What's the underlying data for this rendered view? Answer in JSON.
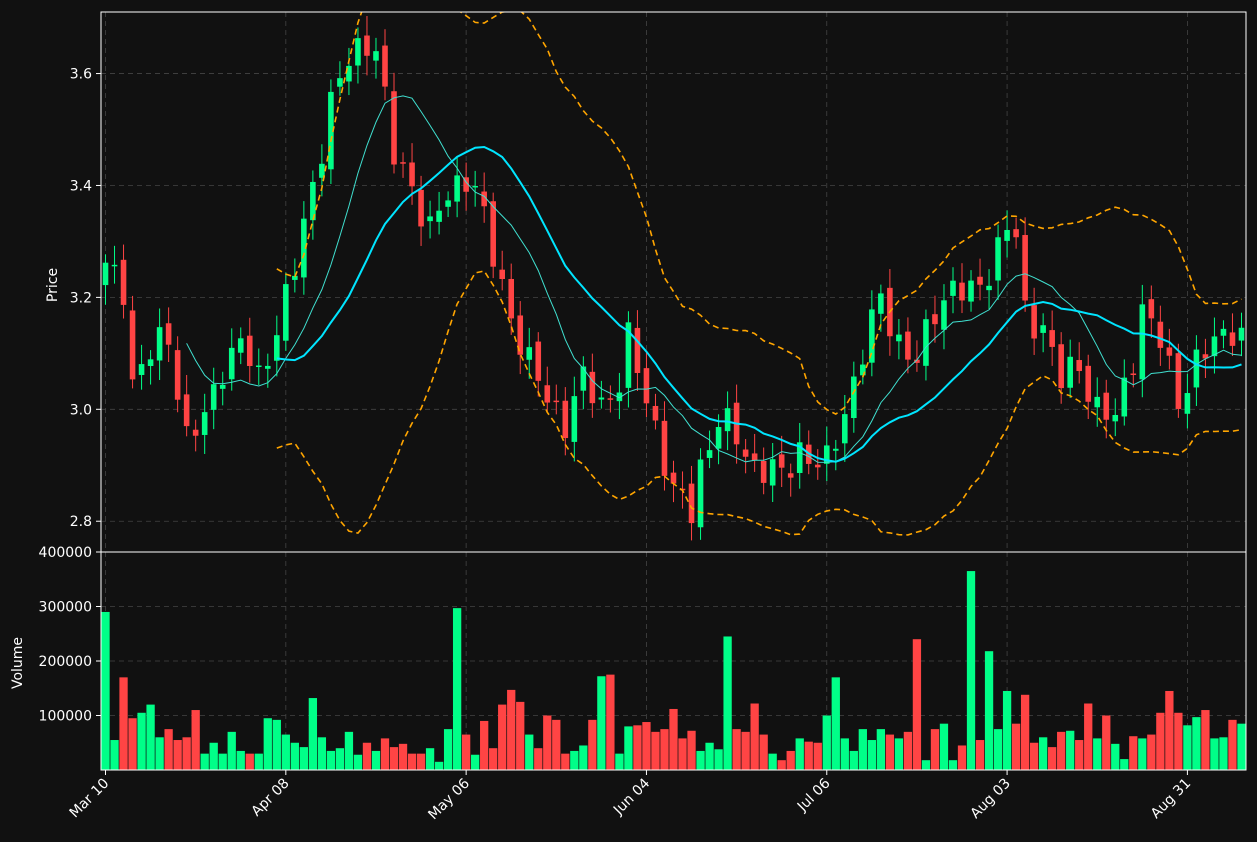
{
  "theme": {
    "background": "#111111",
    "axis_color": "#ffffff",
    "grid_color": "#444444",
    "up_color": "#00ff88",
    "down_color": "#ff4444",
    "ma_fast_color": "#40e0d0",
    "ma_slow_color": "#00e5ff",
    "band_color": "#ffa500"
  },
  "chart_data": [
    {
      "type": "candlestick",
      "title": "",
      "xlabel": "",
      "ylabel": "Price",
      "ylim": [
        2.745,
        3.71
      ],
      "grid": true,
      "y_ticks": [
        "2.8",
        "3.0",
        "3.2",
        "3.4",
        "3.6"
      ],
      "x_ticks": [
        "Mar 10",
        "Apr 08",
        "May 06",
        "Jun 04",
        "Jul 06",
        "Aug 03",
        "Aug 31"
      ],
      "x_tick_index": [
        0,
        20,
        40,
        60,
        80,
        100,
        120
      ],
      "num_bars": 127,
      "price_keyframes": [
        [
          0,
          3.25
        ],
        [
          2,
          3.22
        ],
        [
          3,
          3.05
        ],
        [
          5,
          3.1
        ],
        [
          7,
          3.13
        ],
        [
          9,
          2.95
        ],
        [
          11,
          2.98
        ],
        [
          13,
          3.08
        ],
        [
          15,
          3.12
        ],
        [
          17,
          3.05
        ],
        [
          19,
          3.15
        ],
        [
          21,
          3.25
        ],
        [
          23,
          3.4
        ],
        [
          25,
          3.55
        ],
        [
          27,
          3.62
        ],
        [
          29,
          3.66
        ],
        [
          30,
          3.65
        ],
        [
          31,
          3.55
        ],
        [
          32,
          3.45
        ],
        [
          34,
          3.4
        ],
        [
          36,
          3.32
        ],
        [
          38,
          3.38
        ],
        [
          40,
          3.42
        ],
        [
          41,
          3.4
        ],
        [
          43,
          3.27
        ],
        [
          45,
          3.17
        ],
        [
          47,
          3.08
        ],
        [
          49,
          3.02
        ],
        [
          51,
          2.98
        ],
        [
          53,
          3.05
        ],
        [
          55,
          3.01
        ],
        [
          57,
          3.05
        ],
        [
          58,
          3.12
        ],
        [
          60,
          3.02
        ],
        [
          61,
          2.97
        ],
        [
          63,
          2.85
        ],
        [
          65,
          2.82
        ],
        [
          66,
          2.9
        ],
        [
          68,
          2.98
        ],
        [
          70,
          2.95
        ],
        [
          72,
          2.9
        ],
        [
          75,
          2.88
        ],
        [
          77,
          2.93
        ],
        [
          79,
          2.9
        ],
        [
          80,
          2.9
        ],
        [
          82,
          3.0
        ],
        [
          84,
          3.1
        ],
        [
          86,
          3.2
        ],
        [
          88,
          3.12
        ],
        [
          90,
          3.08
        ],
        [
          92,
          3.18
        ],
        [
          94,
          3.22
        ],
        [
          96,
          3.2
        ],
        [
          98,
          3.25
        ],
        [
          100,
          3.33
        ],
        [
          101,
          3.3
        ],
        [
          102,
          3.17
        ],
        [
          104,
          3.15
        ],
        [
          106,
          3.05
        ],
        [
          108,
          3.08
        ],
        [
          110,
          3.0
        ],
        [
          112,
          2.98
        ],
        [
          114,
          3.1
        ],
        [
          115,
          3.18
        ],
        [
          117,
          3.12
        ],
        [
          119,
          3.02
        ],
        [
          121,
          3.08
        ],
        [
          123,
          3.12
        ],
        [
          125,
          3.15
        ],
        [
          126,
          3.13
        ]
      ],
      "series": [
        {
          "name": "",
          "style": "thin moving average",
          "window": 10
        },
        {
          "name": "",
          "style": "thick moving average",
          "window": 20
        },
        {
          "name": "",
          "style": "dashed band",
          "window": 20,
          "k": 2
        }
      ]
    },
    {
      "type": "bar",
      "title": "",
      "xlabel": "",
      "ylabel": "Volume",
      "ylim": [
        0,
        400000
      ],
      "grid": true,
      "y_ticks": [
        "100000",
        "200000",
        "300000",
        "400000"
      ],
      "values": [
        290000,
        55000,
        170000,
        95000,
        105000,
        120000,
        60000,
        75000,
        55000,
        60000,
        110000,
        30000,
        50000,
        30000,
        70000,
        35000,
        30000,
        30000,
        95000,
        92000,
        65000,
        50000,
        42000,
        132000,
        60000,
        35000,
        40000,
        70000,
        28000,
        50000,
        35000,
        58000,
        42000,
        48000,
        30000,
        30000,
        40000,
        15000,
        75000,
        297000,
        65000,
        28000,
        90000,
        40000,
        120000,
        147000,
        125000,
        65000,
        40000,
        100000,
        92000,
        30000,
        35000,
        45000,
        92000,
        172000,
        175000,
        30000,
        80000,
        82000,
        88000,
        70000,
        75000,
        112000,
        58000,
        72000,
        35000,
        50000,
        38000,
        245000,
        75000,
        70000,
        122000,
        65000,
        30000,
        18000,
        35000,
        58000,
        52000,
        50000,
        100000,
        170000,
        58000,
        35000,
        75000,
        55000,
        75000,
        65000,
        58000,
        70000,
        240000,
        18000,
        75000,
        85000,
        18000,
        45000,
        365000,
        55000,
        218000,
        75000,
        145000,
        85000,
        138000,
        50000,
        60000,
        42000,
        70000,
        72000,
        55000,
        122000,
        58000,
        100000,
        48000,
        20000,
        62000,
        58000,
        65000,
        105000,
        145000,
        105000,
        82000,
        97000,
        110000,
        58000,
        60000,
        92000,
        85000
      ]
    }
  ]
}
